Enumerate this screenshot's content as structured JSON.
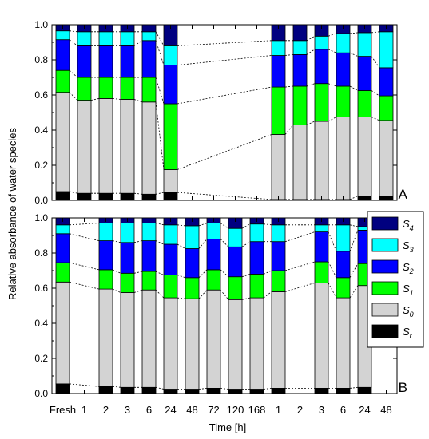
{
  "chart_data": {
    "type": "bar",
    "stacked": true,
    "ylabel": "Relative absorbance of water species",
    "xlabel": "Time [h]",
    "x_tick_labels": [
      "Fresh",
      "1",
      "2",
      "3",
      "6",
      "24",
      "48",
      "72",
      "120",
      "168",
      "1",
      "2",
      "3",
      "6",
      "24",
      "48"
    ],
    "ylim": [
      0,
      1.0
    ],
    "y_ticks": [
      "0.0",
      "0.2",
      "0.4",
      "0.6",
      "0.8",
      "1.0"
    ],
    "legend_position": "right",
    "legend": [
      {
        "sym": "S",
        "sub": "4",
        "color": "#000080"
      },
      {
        "sym": "S",
        "sub": "3",
        "color": "#00ffff"
      },
      {
        "sym": "S",
        "sub": "2",
        "color": "#0000ff"
      },
      {
        "sym": "S",
        "sub": "1",
        "color": "#00ff00"
      },
      {
        "sym": "S",
        "sub": "0",
        "color": "#d3d3d3"
      },
      {
        "sym": "S",
        "sub": "r",
        "color": "#000000"
      }
    ],
    "series_order_bottom_to_top": [
      "Sr",
      "S0",
      "S1",
      "S2",
      "S3",
      "S4"
    ],
    "panels": [
      {
        "label": "A",
        "bars": [
          {
            "slot": 0,
            "values": [
              0.05,
              0.565,
              0.125,
              0.175,
              0.05,
              0.035
            ]
          },
          {
            "slot": 1,
            "values": [
              0.04,
              0.53,
              0.13,
              0.18,
              0.08,
              0.04
            ]
          },
          {
            "slot": 2,
            "values": [
              0.04,
              0.54,
              0.12,
              0.18,
              0.08,
              0.04
            ]
          },
          {
            "slot": 3,
            "values": [
              0.04,
              0.535,
              0.125,
              0.18,
              0.08,
              0.04
            ]
          },
          {
            "slot": 4,
            "values": [
              0.035,
              0.525,
              0.14,
              0.21,
              0.05,
              0.04
            ]
          },
          {
            "slot": 5,
            "values": [
              0.045,
              0.13,
              0.375,
              0.22,
              0.11,
              0.12
            ]
          },
          {
            "slot": 10,
            "values": [
              0.005,
              0.37,
              0.27,
              0.18,
              0.085,
              0.09
            ]
          },
          {
            "slot": 11,
            "values": [
              0.005,
              0.425,
              0.22,
              0.18,
              0.08,
              0.09
            ]
          },
          {
            "slot": 12,
            "values": [
              0.005,
              0.445,
              0.215,
              0.195,
              0.075,
              0.065
            ]
          },
          {
            "slot": 13,
            "values": [
              0.005,
              0.47,
              0.175,
              0.19,
              0.11,
              0.05
            ]
          },
          {
            "slot": 14,
            "values": [
              0.025,
              0.45,
              0.15,
              0.195,
              0.135,
              0.045
            ]
          },
          {
            "slot": 15,
            "values": [
              0.025,
              0.43,
              0.14,
              0.16,
              0.205,
              0.04
            ]
          }
        ]
      },
      {
        "label": "B",
        "bars": [
          {
            "slot": 0,
            "values": [
              0.055,
              0.58,
              0.11,
              0.165,
              0.05,
              0.04
            ]
          },
          {
            "slot": 2,
            "values": [
              0.04,
              0.555,
              0.11,
              0.165,
              0.1,
              0.03
            ]
          },
          {
            "slot": 3,
            "values": [
              0.035,
              0.54,
              0.11,
              0.175,
              0.11,
              0.03
            ]
          },
          {
            "slot": 4,
            "values": [
              0.035,
              0.555,
              0.105,
              0.175,
              0.1,
              0.03
            ]
          },
          {
            "slot": 5,
            "values": [
              0.025,
              0.52,
              0.13,
              0.175,
              0.11,
              0.04
            ]
          },
          {
            "slot": 6,
            "values": [
              0.025,
              0.515,
              0.12,
              0.165,
              0.13,
              0.045
            ]
          },
          {
            "slot": 7,
            "values": [
              0.03,
              0.56,
              0.115,
              0.175,
              0.09,
              0.03
            ]
          },
          {
            "slot": 8,
            "values": [
              0.025,
              0.51,
              0.13,
              0.17,
              0.105,
              0.06
            ]
          },
          {
            "slot": 9,
            "values": [
              0.025,
              0.52,
              0.135,
              0.185,
              0.1,
              0.035
            ]
          },
          {
            "slot": 10,
            "values": [
              0.03,
              0.55,
              0.12,
              0.165,
              0.095,
              0.04
            ]
          },
          {
            "slot": 12,
            "values": [
              0.03,
              0.6,
              0.12,
              0.17,
              0.04,
              0.04
            ]
          },
          {
            "slot": 13,
            "values": [
              0.03,
              0.515,
              0.115,
              0.15,
              0.15,
              0.04
            ]
          },
          {
            "slot": 14,
            "values": [
              0.035,
              0.58,
              0.125,
              0.19,
              0.02,
              0.05
            ]
          }
        ]
      }
    ]
  }
}
